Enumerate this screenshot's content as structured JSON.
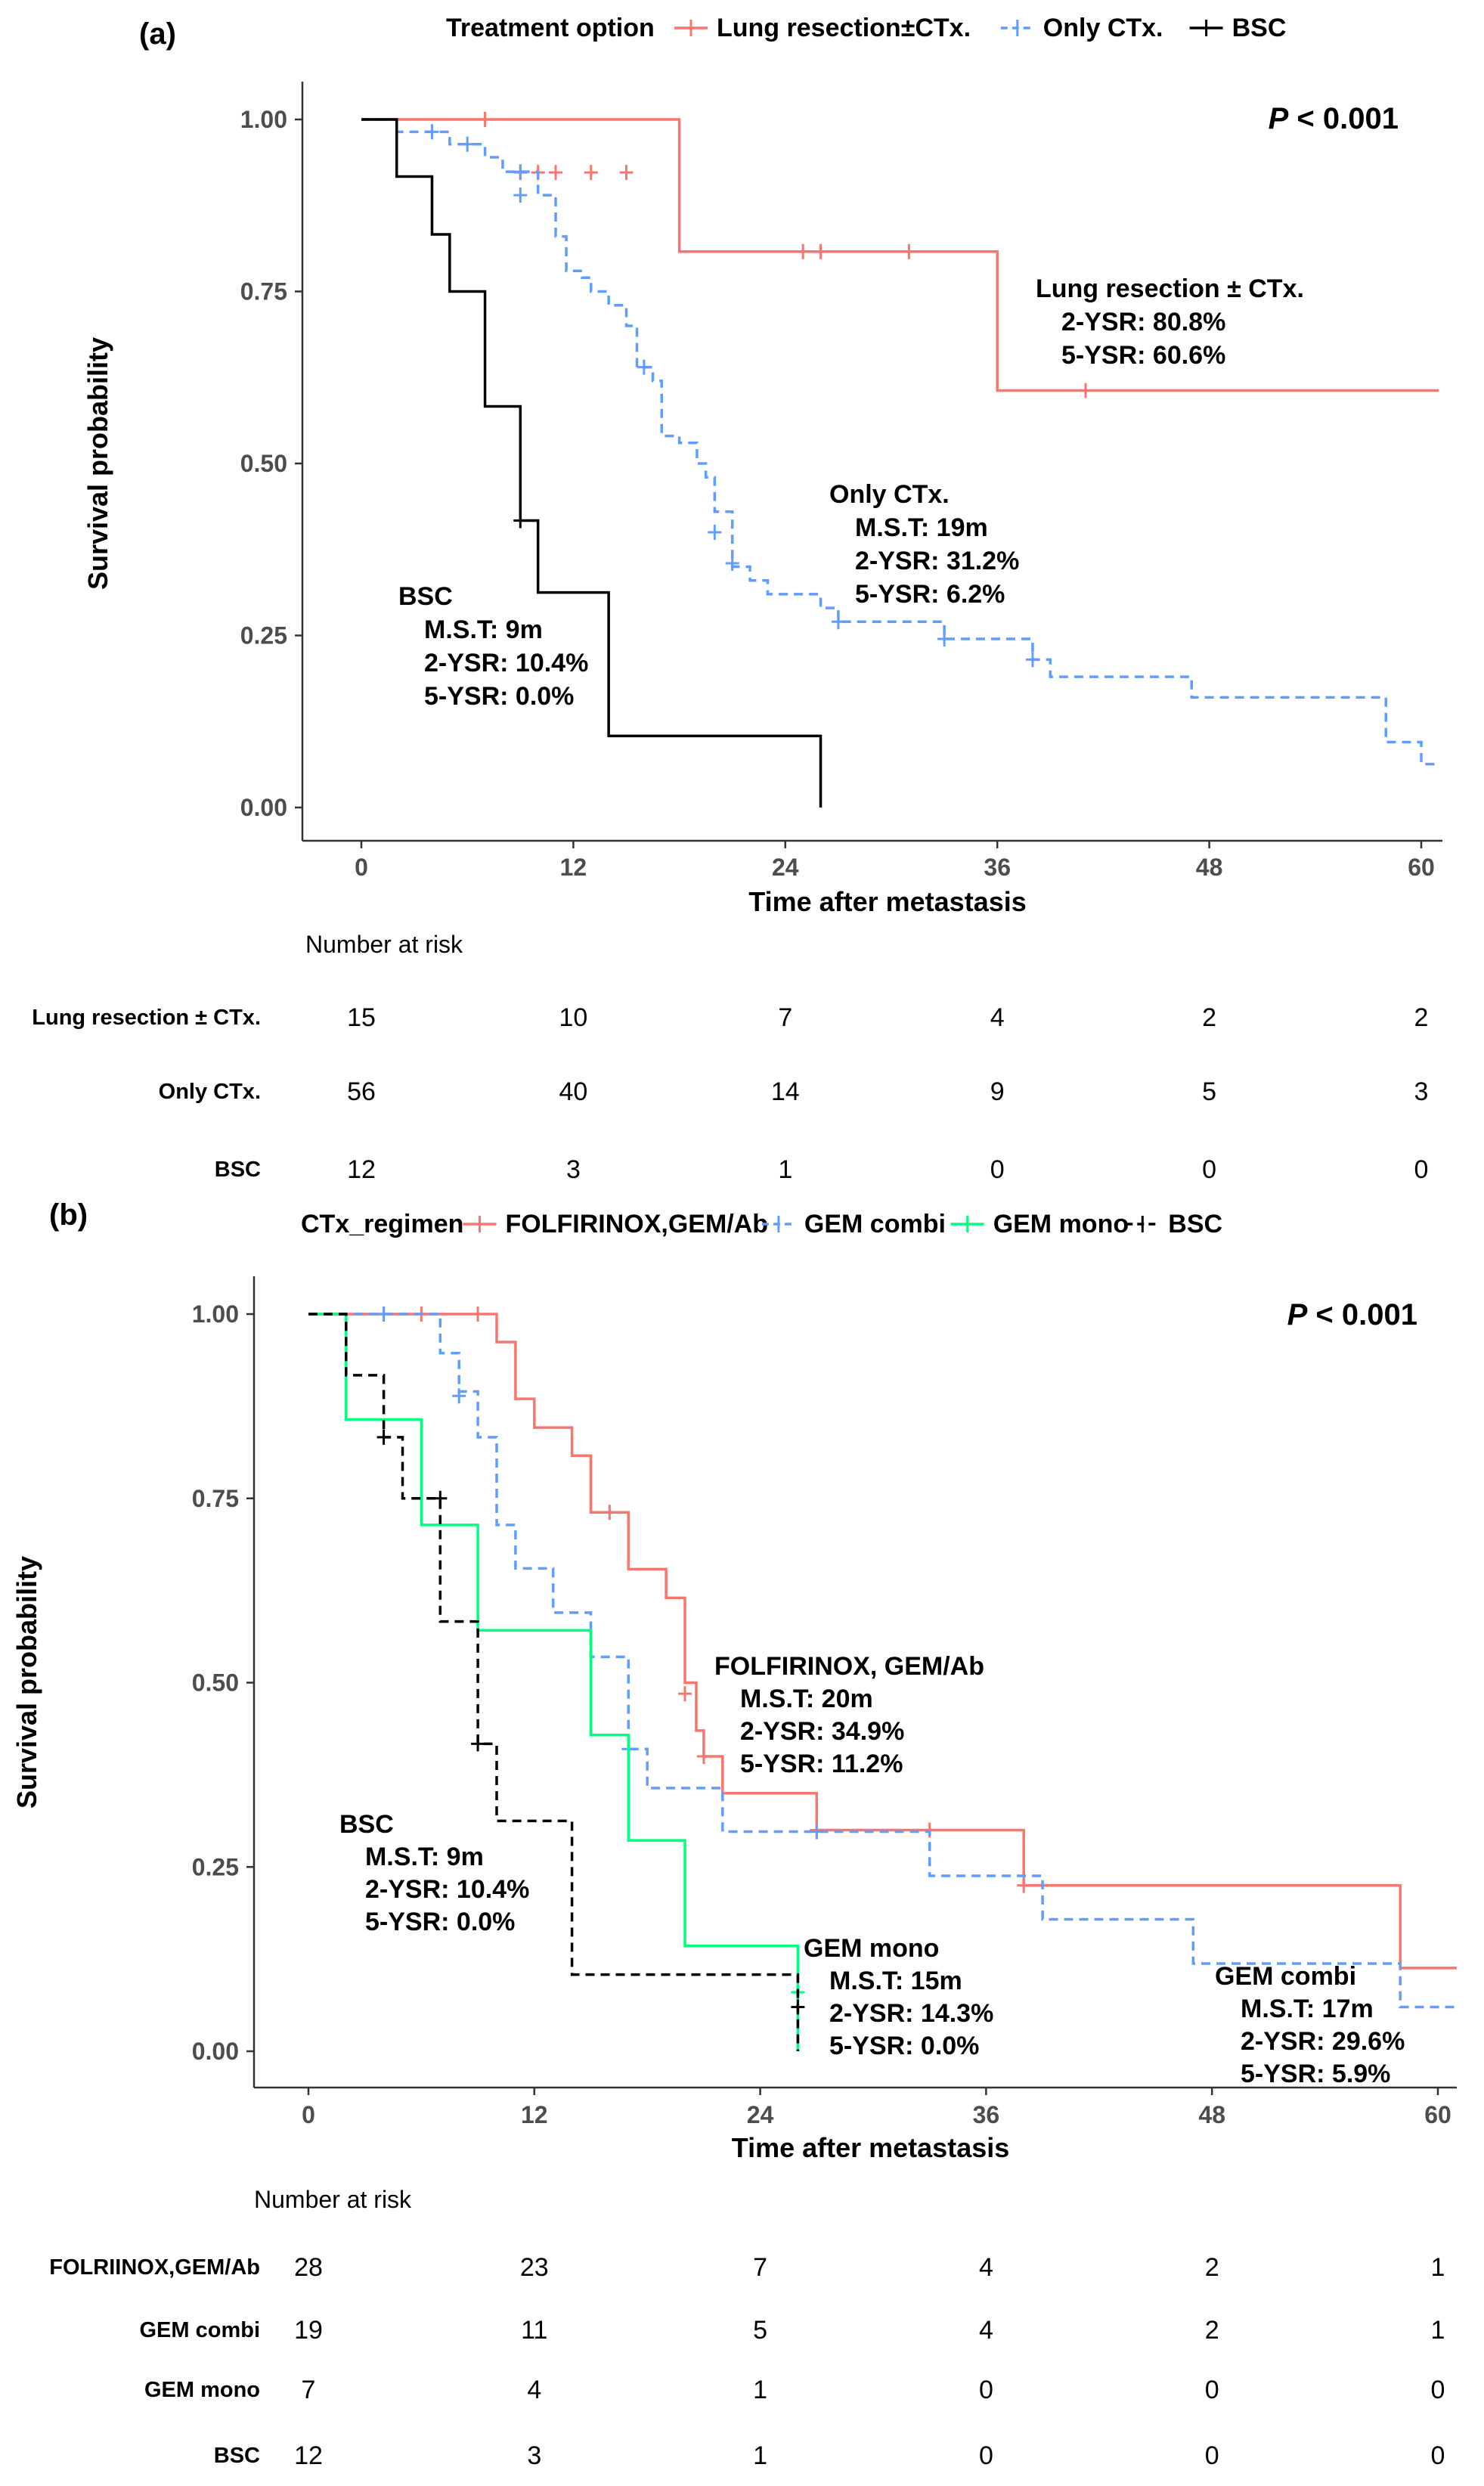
{
  "chart_data": [
    {
      "type": "line",
      "panel_label": "(a)",
      "legend": {
        "title": "Treatment option",
        "placement": "top",
        "entries": [
          "Lung resection±CTx.",
          "Only CTx.",
          "BSC"
        ]
      },
      "p_value": {
        "label": "P",
        "text": " < 0.001"
      },
      "xlabel": "Time after metastasis",
      "ylabel": "Survival probability",
      "xlim": [
        0,
        61
      ],
      "ylim": [
        0,
        1
      ],
      "x_ticks": [
        0,
        12,
        24,
        36,
        48,
        60
      ],
      "y_ticks": [
        "0.00",
        "0.25",
        "0.50",
        "0.75",
        "1.00"
      ],
      "colors": {
        "red": "#f8766d",
        "blue": "#619cff",
        "black": "#000000"
      },
      "series": [
        {
          "name": "Lung resection±CTx.",
          "color": "#f8766d",
          "dash": false,
          "steps": [
            [
              0,
              1
            ],
            [
              18,
              0.808
            ],
            [
              36,
              0.606
            ],
            [
              61,
              0.606
            ]
          ],
          "censors": [
            [
              7,
              1
            ],
            [
              9,
              0.923
            ],
            [
              10,
              0.923
            ],
            [
              11,
              0.923
            ],
            [
              13,
              0.923
            ],
            [
              15,
              0.923
            ],
            [
              25,
              0.808
            ],
            [
              26,
              0.808
            ],
            [
              31,
              0.808
            ],
            [
              41,
              0.606
            ]
          ]
        },
        {
          "name": "Only CTx.",
          "color": "#619cff",
          "dash": true,
          "steps": [
            [
              0,
              1
            ],
            [
              2,
              0.982
            ],
            [
              5,
              0.964
            ],
            [
              7,
              0.945
            ],
            [
              8,
              0.924
            ],
            [
              10,
              0.89
            ],
            [
              11,
              0.83
            ],
            [
              11.6,
              0.78
            ],
            [
              12.5,
              0.77
            ],
            [
              13,
              0.75
            ],
            [
              14,
              0.73
            ],
            [
              15,
              0.7
            ],
            [
              15.6,
              0.64
            ],
            [
              16.5,
              0.62
            ],
            [
              17,
              0.54
            ],
            [
              18,
              0.53
            ],
            [
              19,
              0.5
            ],
            [
              19.5,
              0.48
            ],
            [
              20,
              0.43
            ],
            [
              21,
              0.35
            ],
            [
              22,
              0.33
            ],
            [
              23,
              0.31
            ],
            [
              26,
              0.29
            ],
            [
              27,
              0.27
            ],
            [
              33,
              0.245
            ],
            [
              38,
              0.215
            ],
            [
              39,
              0.19
            ],
            [
              47,
              0.16
            ],
            [
              58,
              0.095
            ],
            [
              60,
              0.063
            ],
            [
              61,
              0.063
            ]
          ],
          "censors": [
            [
              4,
              0.982
            ],
            [
              6,
              0.964
            ],
            [
              9,
              0.924
            ],
            [
              9,
              0.89
            ],
            [
              16,
              0.64
            ],
            [
              20,
              0.4
            ],
            [
              21,
              0.355
            ],
            [
              27,
              0.27
            ],
            [
              33,
              0.245
            ],
            [
              38,
              0.215
            ]
          ]
        },
        {
          "name": "BSC",
          "color": "#000000",
          "dash": false,
          "steps": [
            [
              0,
              1
            ],
            [
              2,
              0.917
            ],
            [
              4,
              0.833
            ],
            [
              5,
              0.75
            ],
            [
              7,
              0.583
            ],
            [
              9,
              0.417
            ],
            [
              10,
              0.3125
            ],
            [
              14,
              0.104
            ],
            [
              26,
              0.104
            ],
            [
              26,
              0
            ]
          ],
          "censors": [
            [
              9,
              0.417
            ]
          ]
        }
      ],
      "annotations": [
        {
          "series": "Lung resection±CTx.",
          "lines": [
            "Lung resection ± CTx.",
            "2-YSR: 80.8%",
            "5-YSR: 60.6%"
          ]
        },
        {
          "series": "Only CTx.",
          "lines": [
            "Only CTx.",
            "M.S.T: 19m",
            "2-YSR: 31.2%",
            "5-YSR: 6.2%"
          ]
        },
        {
          "series": "BSC",
          "lines": [
            "BSC",
            "M.S.T: 9m",
            "2-YSR: 10.4%",
            "5-YSR: 0.0%"
          ]
        }
      ],
      "risk_table": {
        "title": "Number at risk",
        "rows": [
          {
            "label": "Lung resection ± CTx.",
            "values": [
              "15",
              "10",
              "7",
              "4",
              "2",
              "2"
            ]
          },
          {
            "label": "Only CTx.",
            "values": [
              "56",
              "40",
              "14",
              "9",
              "5",
              "3"
            ]
          },
          {
            "label": "BSC",
            "values": [
              "12",
              "3",
              "1",
              "0",
              "0",
              "0"
            ]
          }
        ]
      }
    },
    {
      "type": "line",
      "panel_label": "(b)",
      "legend": {
        "title": "CTx_regimen",
        "placement": "top",
        "entries": [
          "FOLFIRINOX,GEM/Ab",
          "GEM combi",
          "GEM mono",
          "BSC"
        ]
      },
      "p_value": {
        "label": "P",
        "text": " < 0.001"
      },
      "xlabel": "Time after metastasis",
      "ylabel": "Survival probability",
      "xlim": [
        0,
        61
      ],
      "ylim": [
        0,
        1
      ],
      "x_ticks": [
        0,
        12,
        24,
        36,
        48,
        60
      ],
      "y_ticks": [
        "0.00",
        "0.25",
        "0.50",
        "0.75",
        "1.00"
      ],
      "colors": {
        "red": "#f8766d",
        "blue": "#619cff",
        "green": "#00ff7f",
        "black": "#000000"
      },
      "series": [
        {
          "name": "FOLFIRINOX,GEM/Ab",
          "color": "#f8766d",
          "dash": false,
          "steps": [
            [
              0,
              1
            ],
            [
              10,
              0.962
            ],
            [
              11,
              0.885
            ],
            [
              12,
              0.846
            ],
            [
              14,
              0.808
            ],
            [
              15,
              0.731
            ],
            [
              17,
              0.654
            ],
            [
              19,
              0.615
            ],
            [
              20,
              0.5
            ],
            [
              20.6,
              0.435
            ],
            [
              21,
              0.4
            ],
            [
              22,
              0.35
            ],
            [
              27,
              0.3
            ],
            [
              38,
              0.225
            ],
            [
              58,
              0.113
            ],
            [
              61,
              0.113
            ]
          ],
          "censors": [
            [
              4,
              1
            ],
            [
              6,
              1
            ],
            [
              9,
              1
            ],
            [
              16,
              0.731
            ],
            [
              20,
              0.485
            ],
            [
              21,
              0.4
            ],
            [
              27,
              0.3
            ],
            [
              33,
              0.3
            ],
            [
              38,
              0.225
            ]
          ]
        },
        {
          "name": "GEM combi",
          "color": "#619cff",
          "dash": true,
          "steps": [
            [
              0,
              1
            ],
            [
              7,
              0.947
            ],
            [
              8,
              0.895
            ],
            [
              9,
              0.833
            ],
            [
              10,
              0.714
            ],
            [
              11,
              0.655
            ],
            [
              13,
              0.595
            ],
            [
              15,
              0.535
            ],
            [
              17,
              0.41
            ],
            [
              18,
              0.357
            ],
            [
              22,
              0.298
            ],
            [
              33,
              0.238
            ],
            [
              39,
              0.179
            ],
            [
              47,
              0.119
            ],
            [
              58,
              0.06
            ],
            [
              61,
              0.06
            ]
          ],
          "censors": [
            [
              4,
              1
            ],
            [
              8,
              0.889
            ],
            [
              17,
              0.41
            ],
            [
              27,
              0.298
            ]
          ]
        },
        {
          "name": "GEM mono",
          "color": "#00ff7f",
          "dash": false,
          "steps": [
            [
              0,
              1
            ],
            [
              2,
              0.857
            ],
            [
              6,
              0.714
            ],
            [
              9,
              0.571
            ],
            [
              15,
              0.429
            ],
            [
              17,
              0.286
            ],
            [
              20,
              0.143
            ],
            [
              26,
              0.143
            ],
            [
              26,
              0
            ]
          ],
          "censors": [
            [
              26,
              0.08
            ]
          ]
        },
        {
          "name": "BSC",
          "color": "#000000",
          "dash": true,
          "steps": [
            [
              0,
              1
            ],
            [
              2,
              0.917
            ],
            [
              4,
              0.833
            ],
            [
              5,
              0.75
            ],
            [
              7,
              0.583
            ],
            [
              9,
              0.417
            ],
            [
              10,
              0.3125
            ],
            [
              14,
              0.104
            ],
            [
              26,
              0.104
            ],
            [
              26,
              0
            ]
          ],
          "censors": [
            [
              4,
              0.833
            ],
            [
              7,
              0.75
            ],
            [
              9,
              0.417
            ],
            [
              26,
              0.06
            ]
          ]
        }
      ],
      "annotations": [
        {
          "series": "FOLFIRINOX,GEM/Ab",
          "lines": [
            "FOLFIRINOX, GEM/Ab",
            "M.S.T: 20m",
            "2-YSR: 34.9%",
            "5-YSR: 11.2%"
          ]
        },
        {
          "series": "BSC",
          "lines": [
            "BSC",
            "M.S.T: 9m",
            "2-YSR: 10.4%",
            "5-YSR: 0.0%"
          ]
        },
        {
          "series": "GEM mono",
          "lines": [
            "GEM mono",
            "M.S.T: 15m",
            "2-YSR: 14.3%",
            "5-YSR: 0.0%"
          ]
        },
        {
          "series": "GEM combi",
          "lines": [
            "GEM combi",
            "M.S.T: 17m",
            "2-YSR: 29.6%",
            "5-YSR: 5.9%"
          ]
        }
      ],
      "risk_table": {
        "title": "Number at risk",
        "rows": [
          {
            "label": "FOLRIINOX,GEM/Ab",
            "values": [
              "28",
              "23",
              "7",
              "4",
              "2",
              "1"
            ]
          },
          {
            "label": "GEM combi",
            "values": [
              "19",
              "11",
              "5",
              "4",
              "2",
              "1"
            ]
          },
          {
            "label": "GEM mono",
            "values": [
              "7",
              "4",
              "1",
              "0",
              "0",
              "0"
            ]
          },
          {
            "label": "BSC",
            "values": [
              "12",
              "3",
              "1",
              "0",
              "0",
              "0"
            ]
          }
        ]
      }
    }
  ]
}
